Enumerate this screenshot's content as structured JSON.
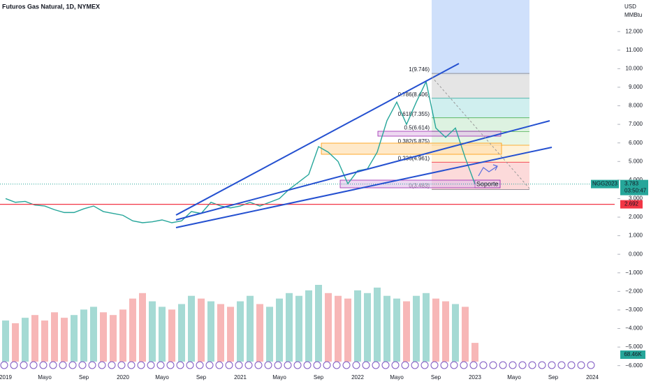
{
  "chart_data": {
    "type": "line",
    "title": "Futuros Gas Natural, 1D, NYMEX",
    "y_unit": "USD",
    "y_unit_line2": "MMBtu",
    "color": "#26a69a",
    "categories": [
      "2019",
      null,
      null,
      null,
      "Mayo",
      null,
      null,
      null,
      "Sep",
      null,
      null,
      null,
      "2020",
      null,
      null,
      null,
      "Mayo",
      null,
      null,
      null,
      "Sep",
      null,
      null,
      null,
      "2021",
      null,
      null,
      null,
      "Mayo",
      null,
      null,
      null,
      "Sep",
      null,
      null,
      null,
      "2022",
      null,
      null,
      null,
      "Mayo",
      null,
      null,
      null,
      "Sep",
      null,
      null,
      null,
      "2023",
      null,
      null,
      null,
      "Mayo",
      null,
      null,
      null,
      "Sep",
      null,
      null,
      null,
      "2024"
    ],
    "values": [
      3.0,
      2.8,
      2.85,
      2.65,
      2.6,
      2.4,
      2.25,
      2.25,
      2.45,
      2.6,
      2.3,
      2.2,
      2.1,
      1.8,
      1.7,
      1.75,
      1.85,
      1.7,
      1.8,
      2.3,
      2.2,
      2.8,
      2.6,
      2.5,
      2.6,
      2.8,
      2.6,
      2.8,
      3.0,
      3.5,
      3.9,
      4.3,
      5.8,
      5.5,
      5.0,
      3.8,
      4.5,
      4.6,
      5.5,
      7.2,
      8.2,
      7.0,
      8.2,
      9.3,
      6.8,
      6.3,
      6.8,
      5.2,
      3.783,
      null,
      null,
      null,
      null,
      null,
      null,
      null,
      null,
      null,
      null,
      null,
      null
    ],
    "volume": [
      150,
      140,
      160,
      170,
      150,
      180,
      160,
      170,
      190,
      200,
      180,
      170,
      190,
      230,
      250,
      220,
      200,
      190,
      210,
      240,
      230,
      220,
      210,
      200,
      220,
      240,
      210,
      200,
      230,
      250,
      240,
      260,
      280,
      250,
      240,
      230,
      260,
      250,
      270,
      240,
      230,
      220,
      240,
      250,
      230,
      220,
      210,
      200,
      68.46,
      null,
      null,
      null,
      null,
      null,
      null,
      null,
      null,
      null,
      null,
      null,
      null
    ],
    "volume_value_labels": [
      null,
      null,
      null,
      null,
      null,
      null,
      null,
      null,
      null,
      null,
      null,
      null,
      null,
      null,
      null,
      null,
      null,
      null,
      null,
      null,
      null,
      null,
      null,
      null,
      null,
      null,
      null,
      null,
      null,
      null,
      null,
      null,
      null,
      null,
      null,
      null,
      null,
      null,
      null,
      null,
      null,
      null,
      null,
      null,
      null,
      null,
      null,
      null,
      "68.46K",
      null,
      null,
      null,
      null,
      null,
      null,
      null,
      null,
      null,
      null,
      null,
      null
    ],
    "ylim": [
      -6.2,
      13.7
    ],
    "yticks": [
      {
        "value": -6,
        "label": "−6.000"
      },
      {
        "value": -5,
        "label": "−5.000"
      },
      {
        "value": -4,
        "label": "−4.000"
      },
      {
        "value": -3,
        "label": "−3.000"
      },
      {
        "value": -2,
        "label": "−2.000"
      },
      {
        "value": -1,
        "label": "−1.000"
      },
      {
        "value": 0,
        "label": "0.000"
      },
      {
        "value": 1,
        "label": "1.000"
      },
      {
        "value": 2,
        "label": "2.000"
      },
      {
        "value": 3,
        "label": "3.000"
      },
      {
        "value": 4,
        "label": "4.000"
      },
      {
        "value": 5,
        "label": "5.000"
      },
      {
        "value": 6,
        "label": "6.000"
      },
      {
        "value": 7,
        "label": "7.000"
      },
      {
        "value": 8,
        "label": "8.000"
      },
      {
        "value": 9,
        "label": "9.000"
      },
      {
        "value": 10,
        "label": "10.000"
      },
      {
        "value": 11,
        "label": "11.000"
      },
      {
        "value": 12,
        "label": "12.000"
      }
    ],
    "symbol_label": "NGG2023",
    "last_price": 3.783,
    "countdown": "03:50:47",
    "support_line": {
      "value": 2.692,
      "label": "2.692",
      "color": "#f23645"
    },
    "fib_levels": [
      {
        "value": 9.746,
        "label": "1(9.746)",
        "color": "#787b86"
      },
      {
        "value": 8.406,
        "label": "0.786(8.406)",
        "color": "#26a69a"
      },
      {
        "value": 7.355,
        "label": "0.618(7.355)",
        "color": "#4caf50"
      },
      {
        "value": 6.614,
        "label": "0.5(6.614)",
        "color": "#4caf50"
      },
      {
        "value": 5.875,
        "label": "0.382(5.875)",
        "color": "#ff9800"
      },
      {
        "value": 4.961,
        "label": "0.236(4.961)",
        "color": "#f23645"
      },
      {
        "value": 3.483,
        "label": "0(3.483)",
        "color": "#787b86"
      }
    ],
    "annotation": "Soporte"
  }
}
